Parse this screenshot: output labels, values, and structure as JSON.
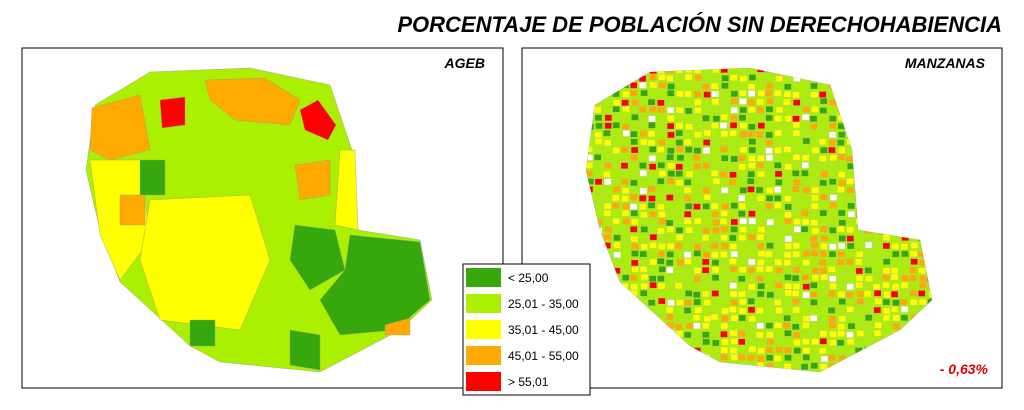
{
  "title": "PORCENTAJE DE POBLACIÓN SIN DERECHOHABIENCIA",
  "panels": [
    {
      "label": "AGEB"
    },
    {
      "label": "MANZANAS",
      "note": "- 0,63%"
    }
  ],
  "legend": [
    {
      "label": "< 25,00",
      "color": "#37a80c"
    },
    {
      "label": "25,01 - 35,00",
      "color": "#aaf000"
    },
    {
      "label": "35,01 - 45,00",
      "color": "#ffff00"
    },
    {
      "label": "45,01 - 55,00",
      "color": "#ffaa00"
    },
    {
      "label": "> 55,01",
      "color": "#ff0000"
    }
  ]
}
